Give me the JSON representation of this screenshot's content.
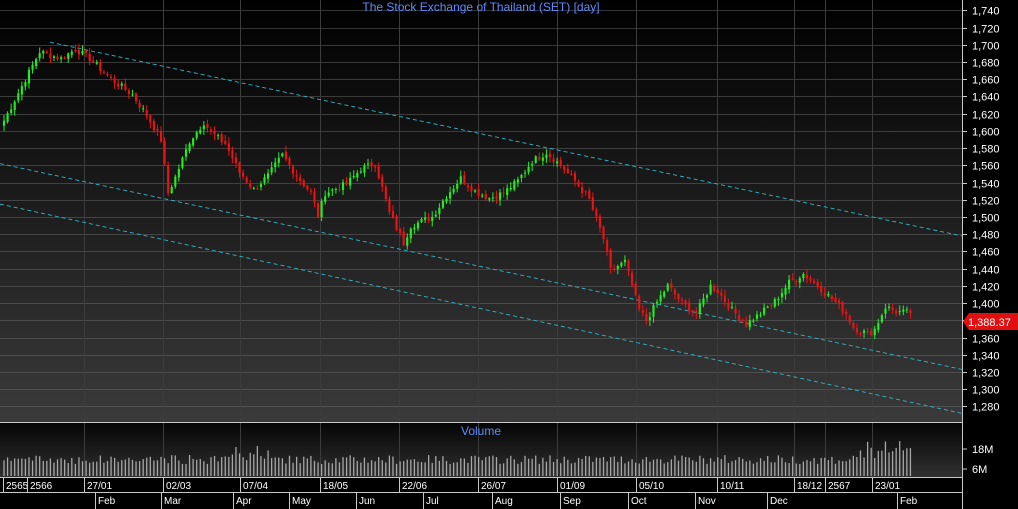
{
  "chart_data": {
    "type": "candlestick",
    "title": "The Stock Exchange of Thailand (SET) [day]",
    "price_axis": {
      "ylim": [
        1262,
        1752
      ],
      "ticks": [
        1280,
        1300,
        1320,
        1340,
        1360,
        1380,
        1400,
        1420,
        1440,
        1460,
        1480,
        1500,
        1520,
        1540,
        1560,
        1580,
        1600,
        1620,
        1640,
        1660,
        1680,
        1700,
        1720,
        1740
      ]
    },
    "last_value": 1388.37,
    "last_value_label": "1,388.37",
    "colors": {
      "up": "#22ee22",
      "down": "#ee1111",
      "last": "#e01010",
      "title": "#5b8cff",
      "trend": "#2fb7c9"
    },
    "price_path": [
      [
        0,
        1612
      ],
      [
        5,
        1652
      ],
      [
        10,
        1692
      ],
      [
        16,
        1684
      ],
      [
        20,
        1695
      ],
      [
        24,
        1684
      ],
      [
        30,
        1660
      ],
      [
        36,
        1642
      ],
      [
        40,
        1618
      ],
      [
        44,
        1590
      ],
      [
        46,
        1528
      ],
      [
        48,
        1546
      ],
      [
        52,
        1588
      ],
      [
        56,
        1610
      ],
      [
        58,
        1598
      ],
      [
        62,
        1585
      ],
      [
        66,
        1552
      ],
      [
        70,
        1532
      ],
      [
        72,
        1540
      ],
      [
        74,
        1548
      ],
      [
        78,
        1572
      ],
      [
        82,
        1548
      ],
      [
        86,
        1528
      ],
      [
        88,
        1502
      ],
      [
        90,
        1528
      ],
      [
        96,
        1538
      ],
      [
        100,
        1556
      ],
      [
        104,
        1562
      ],
      [
        108,
        1505
      ],
      [
        112,
        1470
      ],
      [
        114,
        1490
      ],
      [
        120,
        1500
      ],
      [
        124,
        1525
      ],
      [
        128,
        1545
      ],
      [
        132,
        1530
      ],
      [
        136,
        1522
      ],
      [
        140,
        1528
      ],
      [
        144,
        1542
      ],
      [
        148,
        1565
      ],
      [
        152,
        1575
      ],
      [
        156,
        1560
      ],
      [
        160,
        1542
      ],
      [
        164,
        1520
      ],
      [
        168,
        1475
      ],
      [
        170,
        1438
      ],
      [
        174,
        1448
      ],
      [
        178,
        1392
      ],
      [
        180,
        1380
      ],
      [
        184,
        1408
      ],
      [
        186,
        1420
      ],
      [
        190,
        1400
      ],
      [
        194,
        1388
      ],
      [
        198,
        1420
      ],
      [
        200,
        1414
      ],
      [
        204,
        1392
      ],
      [
        208,
        1376
      ],
      [
        212,
        1388
      ],
      [
        216,
        1402
      ],
      [
        220,
        1424
      ],
      [
        224,
        1434
      ],
      [
        228,
        1420
      ],
      [
        232,
        1405
      ],
      [
        236,
        1388
      ],
      [
        238,
        1372
      ],
      [
        242,
        1364
      ],
      [
        244,
        1370
      ],
      [
        247,
        1396
      ],
      [
        250,
        1390
      ],
      [
        254,
        1389
      ]
    ],
    "volume_panel": {
      "title": "Volume",
      "ticks": [
        "18M",
        "6M"
      ]
    },
    "date_labels": [
      "2565",
      "2566",
      "27/01",
      "02/03",
      "07/04",
      "18/05",
      "22/06",
      "26/07",
      "01/09",
      "05/10",
      "10/11",
      "18/12",
      "2567",
      "23/01"
    ],
    "month_labels": [
      "Feb",
      "Mar",
      "Apr",
      "May",
      "Jun",
      "Jul",
      "Aug",
      "Sep",
      "Oct",
      "Nov",
      "Dec",
      "Feb"
    ]
  }
}
